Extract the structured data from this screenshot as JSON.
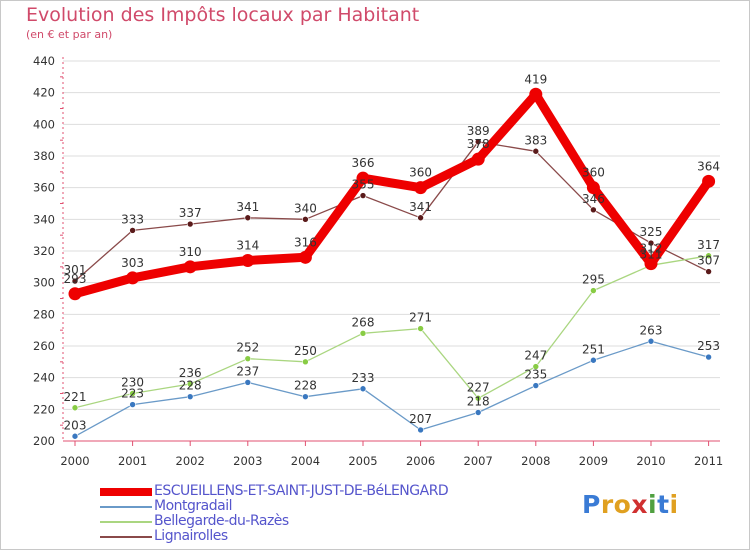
{
  "title": "Evolution des Impôts locaux par Habitant",
  "subtitle": "(en € et par an)",
  "logo": {
    "letters": [
      "P",
      "r",
      "o",
      "x",
      "i",
      "t",
      "i"
    ],
    "colors": [
      "#3a7bd5",
      "#e0a020",
      "#e0a020",
      "#d03030",
      "#50a040",
      "#3a7bd5",
      "#e0a020"
    ]
  },
  "colors": {
    "title": "#d04a6a",
    "axis": "#e05070",
    "grid": "#dddddd",
    "tick_label": "#333333",
    "legend_text": "#5555cc"
  },
  "chart_data": {
    "type": "line",
    "title": "Evolution des Impôts locaux par Habitant",
    "subtitle": "(en € et par an)",
    "xlabel": "",
    "ylabel": "",
    "categories": [
      "2000",
      "2001",
      "2002",
      "2003",
      "2004",
      "2005",
      "2006",
      "2007",
      "2008",
      "2009",
      "2010",
      "2011"
    ],
    "ylim": [
      200,
      440
    ],
    "yticks": [
      200,
      220,
      240,
      260,
      280,
      300,
      320,
      340,
      360,
      380,
      400,
      420,
      440
    ],
    "grid": true,
    "legend_position": "bottom-left",
    "series": [
      {
        "name": "ESCUEILLENS-ET-SAINT-JUST-DE-BéLENGARD",
        "color": "#ee0000",
        "marker": "#ee0000",
        "width": "thick",
        "labels_shown": true,
        "values": [
          293,
          303,
          310,
          314,
          316,
          366,
          360,
          378,
          419,
          360,
          312,
          364
        ],
        "value_labels": [
          "293",
          "303",
          "310",
          "314",
          "316",
          "366",
          "360",
          "378",
          "419",
          "360",
          "312",
          "364"
        ]
      },
      {
        "name": "Montgradail",
        "color": "#6a9ac8",
        "marker": "#3a78c0",
        "width": "thin",
        "labels_shown": true,
        "values": [
          203,
          223,
          228,
          237,
          228,
          233,
          207,
          218,
          235,
          251,
          263,
          253
        ],
        "value_labels": [
          "203",
          "223",
          "228",
          "237",
          "228",
          "233",
          "207",
          "218",
          "235",
          "251",
          "263",
          "253"
        ]
      },
      {
        "name": "Bellegarde-du-Razès",
        "color": "#aad680",
        "marker": "#88cc44",
        "width": "thin",
        "labels_shown": true,
        "values": [
          221,
          230,
          236,
          252,
          250,
          268,
          271,
          227,
          247,
          295,
          311,
          317
        ],
        "value_labels": [
          "221",
          "230",
          "236",
          "252",
          "250",
          "268",
          "271",
          "227",
          "247",
          "295",
          "311",
          "317"
        ]
      },
      {
        "name": "Lignairolles",
        "color": "#8a4a4a",
        "marker": "#5a1a1a",
        "width": "thin",
        "labels_shown": true,
        "values": [
          301,
          333,
          337,
          341,
          340,
          355,
          341,
          389,
          383,
          346,
          325,
          307
        ],
        "value_labels": [
          "301",
          "333",
          "337",
          "341",
          "340",
          "355",
          "341",
          "389",
          "383",
          "346",
          "325",
          "307"
        ]
      }
    ]
  }
}
